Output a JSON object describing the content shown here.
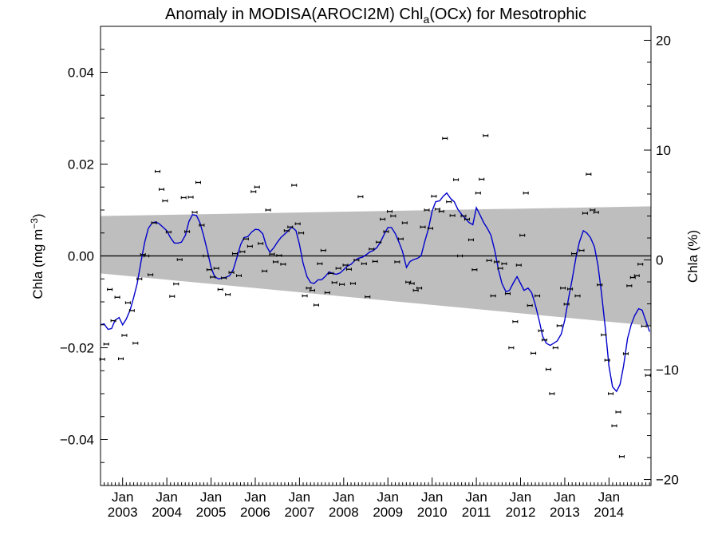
{
  "chart_data": {
    "type": "scatter",
    "title": {
      "prefix": "Anomaly in MODISA(AROCI2M) Chl",
      "subscript": "a",
      "suffix": "(OCx) for Mesotrophic"
    },
    "ylabel_left": {
      "main": "Chla (mg m",
      "superscript": "−3",
      "close": ")"
    },
    "ylabel_right": "Chla (%)",
    "xlim": [
      2002.5,
      2014.95
    ],
    "ylim": [
      -0.05,
      0.05
    ],
    "y2lim": [
      -20.54,
      21.27
    ],
    "yticks": [
      {
        "value": 0.04,
        "label": "0.04"
      },
      {
        "value": 0.02,
        "label": "0.02"
      },
      {
        "value": 0.0,
        "label": "0.00"
      },
      {
        "value": -0.02,
        "label": "−0.02"
      },
      {
        "value": -0.04,
        "label": "−0.04"
      }
    ],
    "y2ticks": [
      {
        "value": 20,
        "label": "20"
      },
      {
        "value": 10,
        "label": "10"
      },
      {
        "value": 0,
        "label": "0"
      },
      {
        "value": -10,
        "label": "−10"
      },
      {
        "value": -20,
        "label": "−20"
      }
    ],
    "xticks": [
      {
        "value": 2003,
        "month": "Jan",
        "year": "2003"
      },
      {
        "value": 2004,
        "month": "Jan",
        "year": "2004"
      },
      {
        "value": 2005,
        "month": "Jan",
        "year": "2005"
      },
      {
        "value": 2006,
        "month": "Jan",
        "year": "2006"
      },
      {
        "value": 2007,
        "month": "Jan",
        "year": "2007"
      },
      {
        "value": 2008,
        "month": "Jan",
        "year": "2008"
      },
      {
        "value": 2009,
        "month": "Jan",
        "year": "2009"
      },
      {
        "value": 2010,
        "month": "Jan",
        "year": "2010"
      },
      {
        "value": 2011,
        "month": "Jan",
        "year": "2011"
      },
      {
        "value": 2012,
        "month": "Jan",
        "year": "2012"
      },
      {
        "value": 2013,
        "month": "Jan",
        "year": "2013"
      },
      {
        "value": 2014,
        "month": "Jan",
        "year": "2014"
      }
    ],
    "band": {
      "upper": [
        [
          2002.5,
          0.0087
        ],
        [
          2014.95,
          0.0108
        ]
      ],
      "lower": [
        [
          2002.5,
          -0.0038
        ],
        [
          2014.95,
          -0.0152
        ]
      ]
    },
    "zero_line": 0.0,
    "colors": {
      "points": "#000000",
      "smooth": "#0000cc",
      "band": "#bebebe",
      "axes": "#000000"
    },
    "points": [
      [
        2002.54,
        -0.0225
      ],
      [
        2002.63,
        -0.0192
      ],
      [
        2002.71,
        -0.0073
      ],
      [
        2002.79,
        -0.0141
      ],
      [
        2002.88,
        -0.009
      ],
      [
        2002.96,
        -0.0224
      ],
      [
        2003.04,
        -0.0173
      ],
      [
        2003.12,
        -0.0102
      ],
      [
        2003.21,
        -0.0119
      ],
      [
        2003.29,
        -0.019
      ],
      [
        2003.38,
        -0.005
      ],
      [
        2003.46,
        0.0003
      ],
      [
        2003.54,
        0.0
      ],
      [
        2003.63,
        -0.0041
      ],
      [
        2003.71,
        0.0072
      ],
      [
        2003.79,
        0.0184
      ],
      [
        2003.88,
        0.0145
      ],
      [
        2003.96,
        0.012
      ],
      [
        2004.04,
        0.0052
      ],
      [
        2004.12,
        -0.0088
      ],
      [
        2004.21,
        -0.0061
      ],
      [
        2004.29,
        -0.0008
      ],
      [
        2004.38,
        0.0127
      ],
      [
        2004.46,
        0.0053
      ],
      [
        2004.54,
        0.0128
      ],
      [
        2004.63,
        0.0095
      ],
      [
        2004.71,
        0.016
      ],
      [
        2004.79,
        0.0067
      ],
      [
        2004.88,
        0.0
      ],
      [
        2004.96,
        -0.003
      ],
      [
        2005.04,
        -0.0046
      ],
      [
        2005.12,
        -0.0027
      ],
      [
        2005.21,
        -0.0073
      ],
      [
        2005.29,
        -0.0048
      ],
      [
        2005.38,
        -0.0084
      ],
      [
        2005.46,
        -0.0036
      ],
      [
        2005.54,
        0.0005
      ],
      [
        2005.63,
        -0.0043
      ],
      [
        2005.71,
        0.0009
      ],
      [
        2005.79,
        0.0037
      ],
      [
        2005.88,
        0.0021
      ],
      [
        2005.96,
        0.014
      ],
      [
        2006.04,
        0.015
      ],
      [
        2006.12,
        0.0027
      ],
      [
        2006.21,
        -0.0033
      ],
      [
        2006.29,
        0.01
      ],
      [
        2006.38,
        0.0004
      ],
      [
        2006.46,
        -0.0013
      ],
      [
        2006.54,
        0.0001
      ],
      [
        2006.63,
        -0.0018
      ],
      [
        2006.71,
        0.0055
      ],
      [
        2006.79,
        0.0063
      ],
      [
        2006.88,
        0.0154
      ],
      [
        2006.96,
        0.007
      ],
      [
        2007.04,
        0.005
      ],
      [
        2007.12,
        -0.0087
      ],
      [
        2007.21,
        -0.007
      ],
      [
        2007.29,
        -0.0075
      ],
      [
        2007.38,
        -0.0107
      ],
      [
        2007.46,
        -0.0017
      ],
      [
        2007.54,
        0.0012
      ],
      [
        2007.63,
        -0.008
      ],
      [
        2007.71,
        -0.0038
      ],
      [
        2007.79,
        -0.0058
      ],
      [
        2007.88,
        -0.0027
      ],
      [
        2007.96,
        -0.0062
      ],
      [
        2008.04,
        -0.002
      ],
      [
        2008.12,
        -0.0029
      ],
      [
        2008.21,
        -0.006
      ],
      [
        2008.29,
        -0.0009
      ],
      [
        2008.38,
        0.0129
      ],
      [
        2008.46,
        -0.0017
      ],
      [
        2008.54,
        -0.0089
      ],
      [
        2008.63,
        0.0015
      ],
      [
        2008.71,
        -0.0012
      ],
      [
        2008.79,
        0.003
      ],
      [
        2008.88,
        0.008
      ],
      [
        2008.96,
        0.0053
      ],
      [
        2009.04,
        0.0097
      ],
      [
        2009.12,
        0.0087
      ],
      [
        2009.21,
        -0.0013
      ],
      [
        2009.29,
        0.0037
      ],
      [
        2009.38,
        0.0072
      ],
      [
        2009.46,
        -0.0057
      ],
      [
        2009.54,
        -0.006
      ],
      [
        2009.63,
        -0.0075
      ],
      [
        2009.71,
        -0.007
      ],
      [
        2009.79,
        0.0063
      ],
      [
        2009.88,
        0.01
      ],
      [
        2009.96,
        0.006
      ],
      [
        2010.04,
        0.013
      ],
      [
        2010.12,
        0.0102
      ],
      [
        2010.21,
        0.0097
      ],
      [
        2010.29,
        0.0256
      ],
      [
        2010.38,
        0.0118
      ],
      [
        2010.46,
        0.0088
      ],
      [
        2010.54,
        0.0166
      ],
      [
        2010.63,
        0.0
      ],
      [
        2010.71,
        0.0087
      ],
      [
        2010.79,
        0.008
      ],
      [
        2010.88,
        0.0035
      ],
      [
        2010.96,
        -0.003
      ],
      [
        2011.04,
        0.0137
      ],
      [
        2011.12,
        0.0167
      ],
      [
        2011.21,
        0.0262
      ],
      [
        2011.29,
        -0.001
      ],
      [
        2011.38,
        -0.0087
      ],
      [
        2011.46,
        -0.0013
      ],
      [
        2011.54,
        -0.0027
      ],
      [
        2011.63,
        -0.0017
      ],
      [
        2011.71,
        -0.0082
      ],
      [
        2011.79,
        -0.02
      ],
      [
        2011.88,
        -0.0143
      ],
      [
        2011.96,
        -0.002
      ],
      [
        2012.04,
        0.0045
      ],
      [
        2012.12,
        0.0137
      ],
      [
        2012.21,
        -0.0108
      ],
      [
        2012.29,
        -0.0212
      ],
      [
        2012.38,
        -0.0087
      ],
      [
        2012.46,
        -0.0163
      ],
      [
        2012.54,
        -0.0183
      ],
      [
        2012.63,
        -0.0247
      ],
      [
        2012.71,
        -0.03
      ],
      [
        2012.79,
        -0.02
      ],
      [
        2012.88,
        -0.0152
      ],
      [
        2012.96,
        -0.007
      ],
      [
        2013.04,
        -0.0105
      ],
      [
        2013.12,
        -0.0072
      ],
      [
        2013.21,
        0.0005
      ],
      [
        2013.29,
        -0.0087
      ],
      [
        2013.38,
        0.0012
      ],
      [
        2013.46,
        0.0093
      ],
      [
        2013.54,
        0.0178
      ],
      [
        2013.63,
        0.01
      ],
      [
        2013.71,
        0.0095
      ],
      [
        2013.79,
        -0.0063
      ],
      [
        2013.88,
        -0.0172
      ],
      [
        2013.96,
        -0.0227
      ],
      [
        2014.04,
        -0.03
      ],
      [
        2014.12,
        -0.037
      ],
      [
        2014.21,
        -0.034
      ],
      [
        2014.29,
        -0.0437
      ],
      [
        2014.38,
        -0.0213
      ],
      [
        2014.46,
        -0.0065
      ],
      [
        2014.54,
        -0.0047
      ],
      [
        2014.63,
        -0.0043
      ],
      [
        2014.71,
        -0.0018
      ],
      [
        2014.79,
        -0.0153
      ],
      [
        2014.88,
        -0.026
      ]
    ],
    "smooth": [
      [
        2002.5,
        -0.015
      ],
      [
        2002.58,
        -0.0148
      ],
      [
        2002.67,
        -0.016
      ],
      [
        2002.75,
        -0.0158
      ],
      [
        2002.83,
        -0.014
      ],
      [
        2002.92,
        -0.0134
      ],
      [
        2003.0,
        -0.015
      ],
      [
        2003.08,
        -0.0138
      ],
      [
        2003.17,
        -0.0118
      ],
      [
        2003.25,
        -0.009
      ],
      [
        2003.33,
        -0.006
      ],
      [
        2003.42,
        -0.001
      ],
      [
        2003.5,
        0.003
      ],
      [
        2003.58,
        0.006
      ],
      [
        2003.67,
        0.0072
      ],
      [
        2003.75,
        0.0074
      ],
      [
        2003.83,
        0.007
      ],
      [
        2003.92,
        0.0062
      ],
      [
        2004.0,
        0.0055
      ],
      [
        2004.08,
        0.004
      ],
      [
        2004.17,
        0.0028
      ],
      [
        2004.25,
        0.0028
      ],
      [
        2004.33,
        0.003
      ],
      [
        2004.42,
        0.0045
      ],
      [
        2004.5,
        0.0075
      ],
      [
        2004.58,
        0.009
      ],
      [
        2004.67,
        0.0088
      ],
      [
        2004.75,
        0.0072
      ],
      [
        2004.83,
        0.0045
      ],
      [
        2004.92,
        0.001
      ],
      [
        2005.0,
        -0.0025
      ],
      [
        2005.08,
        -0.0045
      ],
      [
        2005.17,
        -0.005
      ],
      [
        2005.25,
        -0.0048
      ],
      [
        2005.33,
        -0.0047
      ],
      [
        2005.42,
        -0.0043
      ],
      [
        2005.5,
        -0.003
      ],
      [
        2005.58,
        -0.0005
      ],
      [
        2005.67,
        0.0025
      ],
      [
        2005.75,
        0.004
      ],
      [
        2005.83,
        0.0042
      ],
      [
        2005.92,
        0.0052
      ],
      [
        2006.0,
        0.0058
      ],
      [
        2006.08,
        0.0057
      ],
      [
        2006.17,
        0.0048
      ],
      [
        2006.25,
        0.0022
      ],
      [
        2006.33,
        0.0008
      ],
      [
        2006.42,
        0.0018
      ],
      [
        2006.5,
        0.003
      ],
      [
        2006.58,
        0.004
      ],
      [
        2006.67,
        0.0048
      ],
      [
        2006.75,
        0.0055
      ],
      [
        2006.83,
        0.0063
      ],
      [
        2006.92,
        0.0055
      ],
      [
        2007.0,
        0.0025
      ],
      [
        2007.08,
        -0.0015
      ],
      [
        2007.17,
        -0.0045
      ],
      [
        2007.25,
        -0.0058
      ],
      [
        2007.33,
        -0.006
      ],
      [
        2007.42,
        -0.0052
      ],
      [
        2007.5,
        -0.0052
      ],
      [
        2007.58,
        -0.0045
      ],
      [
        2007.67,
        -0.0035
      ],
      [
        2007.75,
        -0.0038
      ],
      [
        2007.83,
        -0.004
      ],
      [
        2007.92,
        -0.0037
      ],
      [
        2008.0,
        -0.003
      ],
      [
        2008.08,
        -0.0022
      ],
      [
        2008.17,
        -0.0018
      ],
      [
        2008.25,
        -0.001
      ],
      [
        2008.33,
        -0.0005
      ],
      [
        2008.42,
        -0.0003
      ],
      [
        2008.5,
        0.0002
      ],
      [
        2008.58,
        0.0008
      ],
      [
        2008.67,
        0.0012
      ],
      [
        2008.75,
        0.0018
      ],
      [
        2008.83,
        0.003
      ],
      [
        2008.92,
        0.0048
      ],
      [
        2009.0,
        0.0062
      ],
      [
        2009.08,
        0.0062
      ],
      [
        2009.17,
        0.0048
      ],
      [
        2009.25,
        0.003
      ],
      [
        2009.33,
        0.001
      ],
      [
        2009.42,
        -0.0025
      ],
      [
        2009.5,
        -0.0012
      ],
      [
        2009.58,
        -0.0008
      ],
      [
        2009.67,
        -0.0005
      ],
      [
        2009.75,
        0.0
      ],
      [
        2009.83,
        0.003
      ],
      [
        2009.92,
        0.006
      ],
      [
        2010.0,
        0.0098
      ],
      [
        2010.08,
        0.0118
      ],
      [
        2010.17,
        0.012
      ],
      [
        2010.25,
        0.013
      ],
      [
        2010.33,
        0.0137
      ],
      [
        2010.42,
        0.0125
      ],
      [
        2010.5,
        0.0118
      ],
      [
        2010.58,
        0.0102
      ],
      [
        2010.67,
        0.009
      ],
      [
        2010.75,
        0.0082
      ],
      [
        2010.83,
        0.0073
      ],
      [
        2010.92,
        0.0068
      ],
      [
        2011.0,
        0.0105
      ],
      [
        2011.08,
        0.009
      ],
      [
        2011.17,
        0.0072
      ],
      [
        2011.25,
        0.006
      ],
      [
        2011.33,
        0.0045
      ],
      [
        2011.42,
        0.001
      ],
      [
        2011.5,
        -0.003
      ],
      [
        2011.58,
        -0.006
      ],
      [
        2011.67,
        -0.0078
      ],
      [
        2011.75,
        -0.0075
      ],
      [
        2011.83,
        -0.006
      ],
      [
        2011.92,
        -0.0045
      ],
      [
        2012.0,
        -0.006
      ],
      [
        2012.08,
        -0.0075
      ],
      [
        2012.17,
        -0.007
      ],
      [
        2012.25,
        -0.008
      ],
      [
        2012.33,
        -0.0105
      ],
      [
        2012.42,
        -0.014
      ],
      [
        2012.5,
        -0.0175
      ],
      [
        2012.58,
        -0.019
      ],
      [
        2012.67,
        -0.0195
      ],
      [
        2012.75,
        -0.019
      ],
      [
        2012.83,
        -0.0185
      ],
      [
        2012.92,
        -0.017
      ],
      [
        2013.0,
        -0.014
      ],
      [
        2013.08,
        -0.0095
      ],
      [
        2013.17,
        -0.005
      ],
      [
        2013.25,
        -0.0005
      ],
      [
        2013.33,
        0.003
      ],
      [
        2013.42,
        0.0055
      ],
      [
        2013.5,
        0.005
      ],
      [
        2013.58,
        0.004
      ],
      [
        2013.67,
        0.002
      ],
      [
        2013.75,
        -0.002
      ],
      [
        2013.83,
        -0.008
      ],
      [
        2013.92,
        -0.016
      ],
      [
        2014.0,
        -0.024
      ],
      [
        2014.08,
        -0.0285
      ],
      [
        2014.17,
        -0.0295
      ],
      [
        2014.25,
        -0.028
      ],
      [
        2014.33,
        -0.024
      ],
      [
        2014.42,
        -0.018
      ],
      [
        2014.5,
        -0.015
      ],
      [
        2014.58,
        -0.013
      ],
      [
        2014.67,
        -0.0115
      ],
      [
        2014.75,
        -0.0118
      ],
      [
        2014.83,
        -0.014
      ],
      [
        2014.92,
        -0.0165
      ]
    ]
  }
}
